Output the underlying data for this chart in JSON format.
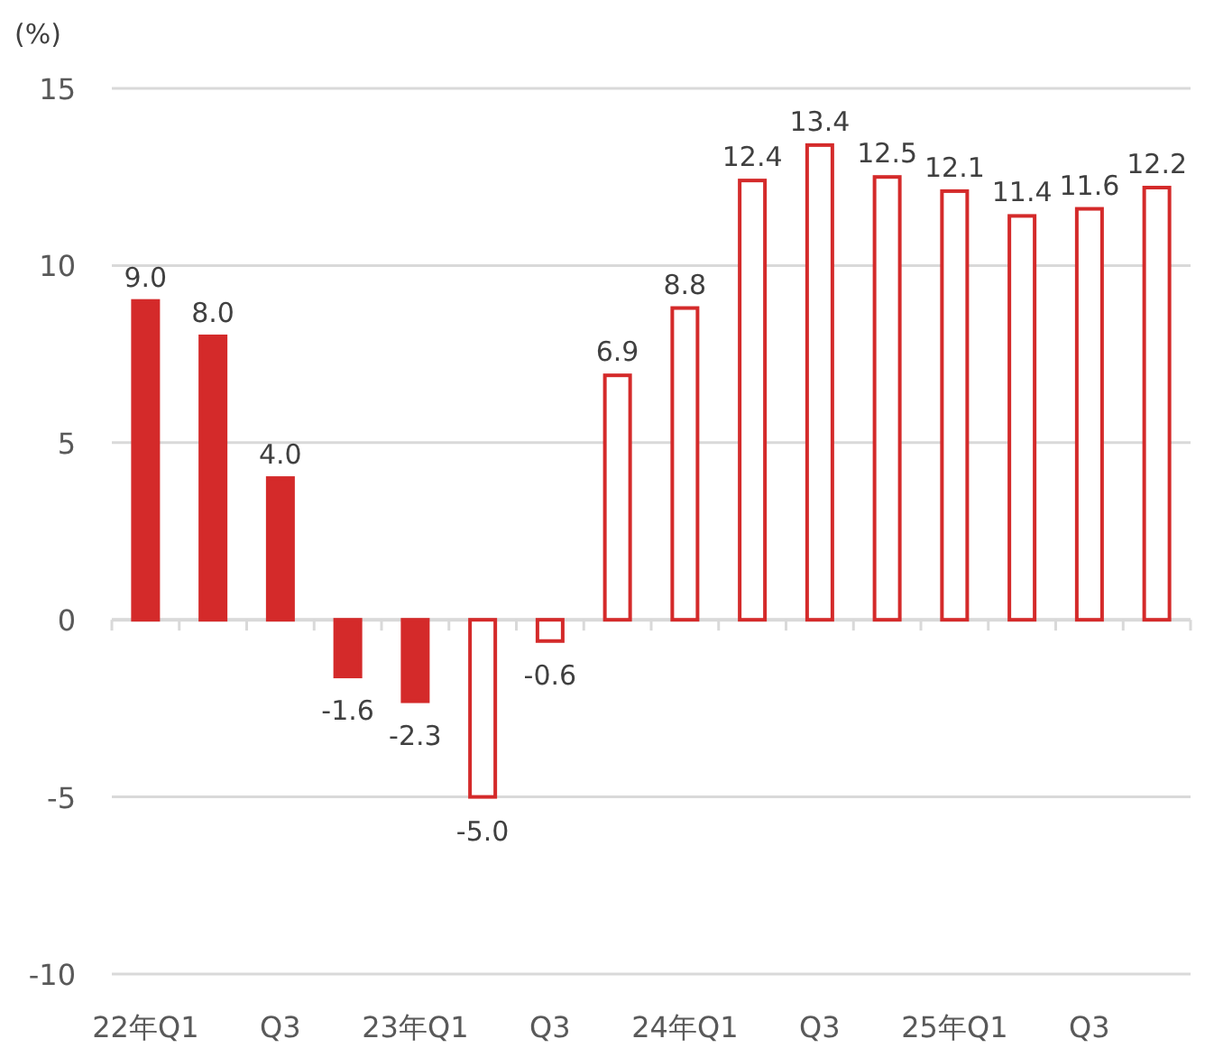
{
  "chart_data": {
    "type": "bar",
    "ylabel": "(%)",
    "categories": [
      "22年Q1",
      null,
      "Q3",
      null,
      "23年Q1",
      null,
      "Q3",
      null,
      "24年Q1",
      null,
      "Q3",
      null,
      "25年Q1",
      null,
      "Q3",
      null
    ],
    "series": [
      {
        "color": "#d42a2a",
        "values": [
          9.0,
          8.0,
          4.0,
          -1.6,
          -2.3,
          null,
          null,
          null,
          null,
          null,
          null,
          null,
          null,
          null,
          null,
          null
        ],
        "value_labels": [
          "9.0",
          "8.0",
          "4.0",
          "-1.6",
          "-2.3",
          null,
          null,
          null,
          null,
          null,
          null,
          null,
          null,
          null,
          null,
          null
        ]
      },
      {
        "color": "#ffffff",
        "values": [
          null,
          null,
          null,
          null,
          null,
          -5.0,
          -0.6,
          6.9,
          8.8,
          12.4,
          13.4,
          12.5,
          12.1,
          11.4,
          11.6,
          12.2
        ],
        "value_labels": [
          null,
          null,
          null,
          null,
          null,
          "-5.0",
          "-0.6",
          "6.9",
          "8.8",
          "12.4",
          "13.4",
          "12.5",
          "12.1",
          "11.4",
          "11.6",
          "12.2"
        ]
      }
    ],
    "ylim": [
      -10,
      15
    ],
    "yticks": [
      -10,
      -5,
      0,
      5,
      10,
      15
    ],
    "grid": "y"
  }
}
